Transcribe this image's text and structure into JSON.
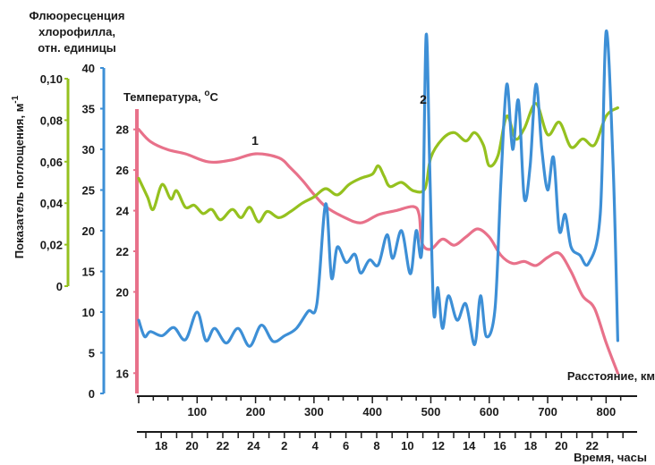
{
  "chart_data": {
    "type": "line",
    "axes": {
      "absorbance": {
        "label": "Показатель поглощения, м",
        "label_sup": "-1",
        "ticks": [
          "0",
          "0,02",
          "0,04",
          "0,06",
          "0,08",
          "0,10"
        ],
        "range": [
          0,
          0.1
        ],
        "color": "#95c11f"
      },
      "fluorescence": {
        "label_lines": [
          "Флюоресценция",
          "хлорофилла,",
          "отн. единицы"
        ],
        "ticks": [
          "0",
          "5",
          "10",
          "15",
          "20",
          "25",
          "30",
          "35",
          "40"
        ],
        "range": [
          0,
          40
        ],
        "color": "#3d8fd6"
      },
      "temperature": {
        "label": "Температура, ",
        "label_sup": "o",
        "label_unit": "C",
        "ticks": [
          "16",
          "20",
          "22",
          "24",
          "26",
          "28"
        ],
        "range": [
          15,
          29
        ],
        "color": "#e8718a"
      },
      "distance": {
        "label": "Расстояние, км",
        "ticks": [
          "100",
          "200",
          "300",
          "400",
          "500",
          "600",
          "700",
          "800"
        ],
        "range": [
          0,
          850
        ]
      },
      "time": {
        "label": "Время, часы",
        "ticks": [
          "18",
          "20",
          "22",
          "24",
          "2",
          "4",
          "6",
          "8",
          "10",
          "12",
          "14",
          "16",
          "18",
          "20",
          "22"
        ]
      }
    },
    "series": [
      {
        "name": "1",
        "axis": "temperature",
        "color": "#e8718a",
        "x": [
          0,
          20,
          50,
          80,
          120,
          160,
          200,
          240,
          260,
          280,
          300,
          320,
          350,
          380,
          410,
          440,
          470,
          480,
          485,
          500,
          520,
          540,
          560,
          580,
          600,
          620,
          640,
          660,
          680,
          700,
          720,
          740,
          760,
          780,
          800,
          820
        ],
        "y": [
          28.0,
          27.4,
          27.0,
          26.8,
          26.4,
          26.5,
          26.8,
          26.6,
          26.1,
          25.5,
          24.8,
          24.2,
          23.7,
          23.4,
          23.8,
          24.0,
          24.2,
          23.8,
          22.4,
          22.1,
          22.6,
          22.3,
          22.7,
          23.1,
          22.7,
          21.8,
          21.4,
          21.5,
          21.3,
          21.7,
          21.9,
          21.0,
          19.8,
          19.2,
          17.5,
          16.0
        ]
      },
      {
        "name": "",
        "axis": "absorbance",
        "color": "#95c11f",
        "x": [
          0,
          15,
          25,
          40,
          55,
          65,
          80,
          95,
          110,
          125,
          140,
          160,
          175,
          190,
          205,
          220,
          240,
          260,
          280,
          300,
          320,
          340,
          360,
          380,
          400,
          410,
          420,
          430,
          450,
          470,
          490,
          500,
          520,
          540,
          560,
          575,
          590,
          600,
          615,
          630,
          645,
          660,
          680,
          700,
          720,
          740,
          760,
          780,
          800,
          820
        ],
        "y": [
          0.052,
          0.043,
          0.037,
          0.049,
          0.042,
          0.046,
          0.038,
          0.039,
          0.035,
          0.037,
          0.032,
          0.037,
          0.033,
          0.038,
          0.031,
          0.036,
          0.033,
          0.036,
          0.04,
          0.043,
          0.047,
          0.044,
          0.049,
          0.052,
          0.054,
          0.058,
          0.053,
          0.048,
          0.05,
          0.046,
          0.047,
          0.062,
          0.071,
          0.074,
          0.07,
          0.074,
          0.068,
          0.058,
          0.063,
          0.082,
          0.071,
          0.076,
          0.088,
          0.073,
          0.079,
          0.067,
          0.071,
          0.068,
          0.082,
          0.086
        ]
      },
      {
        "name": "2",
        "axis": "fluorescence",
        "color": "#3d8fd6",
        "x": [
          0,
          10,
          20,
          40,
          60,
          80,
          100,
          115,
          130,
          150,
          170,
          190,
          210,
          230,
          250,
          270,
          290,
          305,
          320,
          330,
          340,
          355,
          370,
          380,
          395,
          410,
          425,
          435,
          450,
          465,
          475,
          485,
          492,
          498,
          505,
          512,
          520,
          530,
          545,
          560,
          575,
          585,
          595,
          610,
          620,
          630,
          640,
          650,
          660,
          670,
          680,
          690,
          700,
          710,
          720,
          730,
          740,
          755,
          770,
          790,
          800,
          812,
          820
        ],
        "y": [
          9.0,
          7.0,
          7.6,
          7.1,
          8.1,
          6.6,
          10.0,
          6.5,
          8.0,
          6.2,
          8.0,
          5.8,
          8.4,
          6.4,
          7.1,
          8.0,
          10.1,
          11.0,
          23.3,
          14.2,
          18.0,
          16.1,
          17.1,
          14.8,
          16.4,
          15.8,
          19.5,
          16.6,
          20.0,
          14.7,
          20.0,
          18.0,
          44.0,
          28.0,
          10.0,
          13.0,
          8.0,
          12.0,
          9.0,
          11.0,
          6.0,
          12.0,
          7.0,
          10.5,
          26.0,
          38.0,
          30.0,
          36.0,
          24.0,
          28.0,
          38.0,
          30.0,
          25.0,
          29.0,
          20.0,
          22.0,
          18.0,
          17.0,
          16.0,
          22.0,
          44.5,
          28.0,
          6.5
        ]
      }
    ],
    "annotations": [
      {
        "text": "1",
        "series": 0
      },
      {
        "text": "2",
        "series": 2
      }
    ]
  }
}
